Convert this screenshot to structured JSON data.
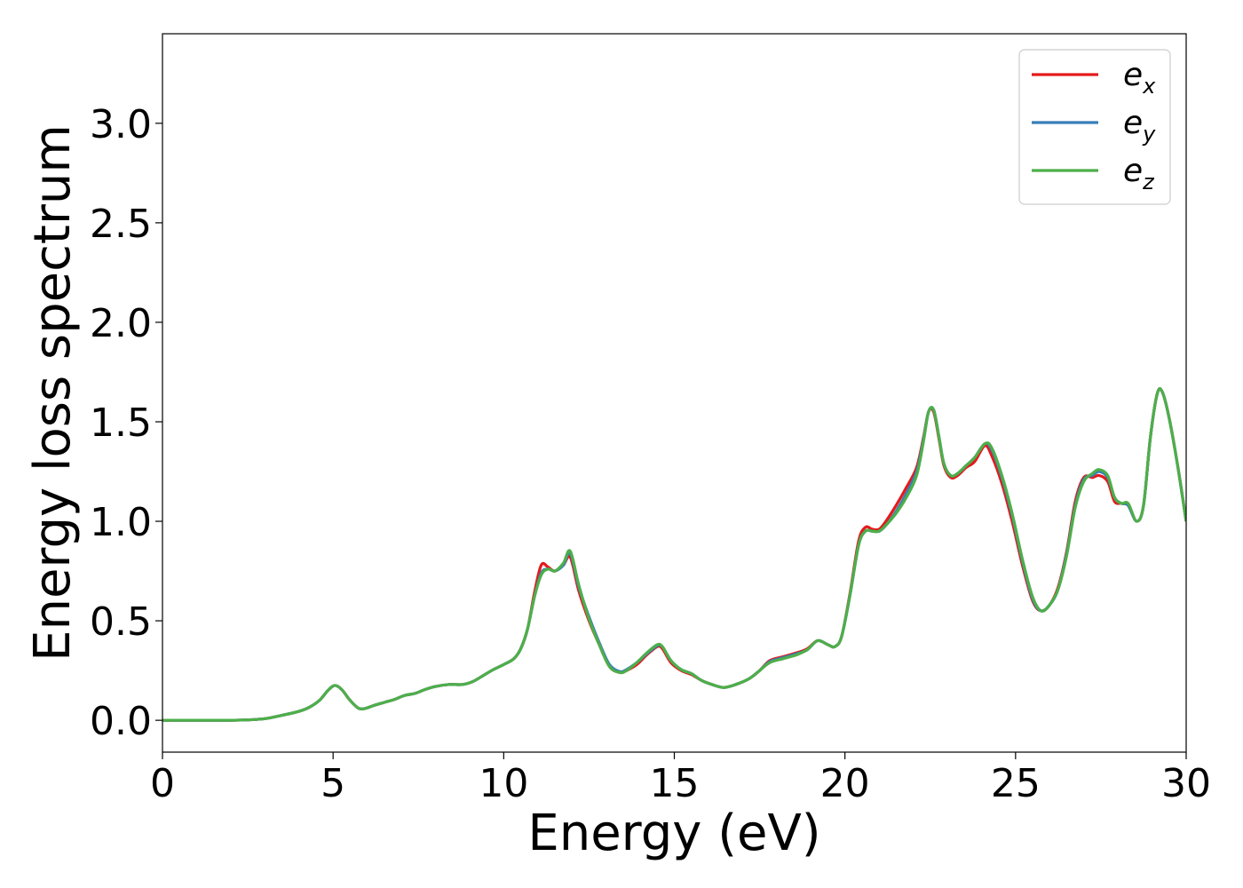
{
  "chart_data": {
    "type": "line",
    "xlabel": "Energy (eV)",
    "ylabel": "Energy loss spectrum",
    "xlim": [
      0,
      30
    ],
    "ylim": [
      -0.16,
      3.45
    ],
    "xticks": [
      0,
      5,
      10,
      15,
      20,
      25,
      30
    ],
    "yticks": [
      0.0,
      0.5,
      1.0,
      1.5,
      2.0,
      2.5,
      3.0
    ],
    "xtick_labels": [
      "0",
      "5",
      "10",
      "15",
      "20",
      "25",
      "30"
    ],
    "ytick_labels": [
      "0.0",
      "0.5",
      "1.0",
      "1.5",
      "2.0",
      "2.5",
      "3.0"
    ],
    "grid": false,
    "legend_position": "top-right",
    "x": [
      0,
      1,
      2,
      2.5,
      3,
      3.5,
      4,
      4.3,
      4.6,
      4.85,
      5.05,
      5.25,
      5.5,
      5.75,
      5.95,
      6.2,
      6.5,
      6.8,
      7.1,
      7.4,
      7.7,
      8.0,
      8.4,
      8.8,
      9.1,
      9.4,
      9.7,
      10.0,
      10.3,
      10.5,
      10.7,
      10.9,
      11.1,
      11.3,
      11.5,
      11.75,
      11.95,
      12.2,
      12.5,
      12.8,
      13.1,
      13.4,
      13.6,
      13.9,
      14.2,
      14.5,
      14.65,
      14.9,
      15.2,
      15.5,
      15.8,
      16.1,
      16.45,
      16.8,
      17.2,
      17.5,
      17.8,
      18.2,
      18.6,
      18.9,
      19.2,
      19.5,
      19.7,
      19.9,
      20.15,
      20.4,
      20.6,
      20.8,
      21.0,
      21.2,
      21.5,
      21.8,
      22.1,
      22.3,
      22.45,
      22.6,
      22.75,
      22.9,
      23.1,
      23.3,
      23.55,
      23.8,
      24.1,
      24.3,
      24.6,
      24.9,
      25.2,
      25.5,
      25.75,
      26.0,
      26.25,
      26.5,
      26.75,
      27.0,
      27.25,
      27.45,
      27.7,
      27.9,
      28.1,
      28.3,
      28.55,
      28.75,
      28.95,
      29.15,
      29.3,
      29.5,
      29.75,
      30.0
    ],
    "series": [
      {
        "name": "e_x",
        "color": "#e41a1c",
        "values": [
          0.0,
          0.0,
          0.0,
          0.002,
          0.008,
          0.025,
          0.045,
          0.065,
          0.1,
          0.15,
          0.175,
          0.155,
          0.1,
          0.06,
          0.06,
          0.075,
          0.09,
          0.105,
          0.125,
          0.135,
          0.155,
          0.17,
          0.18,
          0.18,
          0.195,
          0.225,
          0.255,
          0.28,
          0.31,
          0.36,
          0.46,
          0.64,
          0.78,
          0.77,
          0.75,
          0.78,
          0.82,
          0.65,
          0.5,
          0.38,
          0.27,
          0.24,
          0.25,
          0.28,
          0.33,
          0.37,
          0.36,
          0.29,
          0.25,
          0.23,
          0.2,
          0.18,
          0.165,
          0.18,
          0.21,
          0.25,
          0.3,
          0.32,
          0.34,
          0.36,
          0.4,
          0.38,
          0.37,
          0.42,
          0.64,
          0.9,
          0.97,
          0.96,
          0.96,
          1.0,
          1.08,
          1.17,
          1.27,
          1.42,
          1.55,
          1.55,
          1.42,
          1.28,
          1.22,
          1.23,
          1.27,
          1.3,
          1.38,
          1.33,
          1.19,
          1.0,
          0.78,
          0.6,
          0.55,
          0.58,
          0.67,
          0.85,
          1.1,
          1.22,
          1.22,
          1.23,
          1.2,
          1.1,
          1.09,
          1.08,
          1.0,
          1.08,
          1.42,
          1.64,
          1.65,
          1.52,
          1.28,
          1.0
        ]
      },
      {
        "name": "e_y",
        "color": "#377eb8",
        "values": [
          0.0,
          0.0,
          0.0,
          0.002,
          0.008,
          0.025,
          0.045,
          0.065,
          0.1,
          0.15,
          0.175,
          0.155,
          0.1,
          0.06,
          0.06,
          0.075,
          0.09,
          0.105,
          0.125,
          0.135,
          0.155,
          0.17,
          0.18,
          0.18,
          0.195,
          0.225,
          0.255,
          0.28,
          0.31,
          0.36,
          0.46,
          0.62,
          0.74,
          0.76,
          0.75,
          0.78,
          0.84,
          0.67,
          0.52,
          0.39,
          0.28,
          0.245,
          0.255,
          0.29,
          0.335,
          0.375,
          0.37,
          0.3,
          0.255,
          0.235,
          0.2,
          0.18,
          0.165,
          0.18,
          0.21,
          0.25,
          0.295,
          0.315,
          0.335,
          0.355,
          0.4,
          0.38,
          0.37,
          0.42,
          0.63,
          0.88,
          0.95,
          0.95,
          0.95,
          0.98,
          1.05,
          1.14,
          1.25,
          1.41,
          1.55,
          1.56,
          1.43,
          1.29,
          1.23,
          1.24,
          1.28,
          1.32,
          1.39,
          1.36,
          1.22,
          1.03,
          0.8,
          0.61,
          0.55,
          0.58,
          0.66,
          0.84,
          1.08,
          1.21,
          1.23,
          1.25,
          1.22,
          1.12,
          1.09,
          1.08,
          1.0,
          1.08,
          1.42,
          1.64,
          1.65,
          1.52,
          1.28,
          1.0
        ]
      },
      {
        "name": "e_z",
        "color": "#4daf4a",
        "values": [
          0.0,
          0.0,
          0.0,
          0.002,
          0.008,
          0.025,
          0.045,
          0.065,
          0.1,
          0.15,
          0.175,
          0.155,
          0.1,
          0.06,
          0.06,
          0.075,
          0.09,
          0.105,
          0.125,
          0.135,
          0.155,
          0.17,
          0.18,
          0.18,
          0.195,
          0.225,
          0.255,
          0.28,
          0.31,
          0.36,
          0.46,
          0.62,
          0.73,
          0.76,
          0.75,
          0.79,
          0.85,
          0.68,
          0.51,
          0.38,
          0.27,
          0.24,
          0.25,
          0.29,
          0.34,
          0.38,
          0.37,
          0.3,
          0.255,
          0.235,
          0.2,
          0.18,
          0.165,
          0.18,
          0.21,
          0.25,
          0.29,
          0.31,
          0.33,
          0.355,
          0.4,
          0.38,
          0.37,
          0.42,
          0.63,
          0.88,
          0.95,
          0.95,
          0.95,
          0.98,
          1.04,
          1.12,
          1.23,
          1.4,
          1.55,
          1.56,
          1.43,
          1.29,
          1.23,
          1.24,
          1.28,
          1.32,
          1.39,
          1.37,
          1.23,
          1.04,
          0.81,
          0.62,
          0.55,
          0.58,
          0.66,
          0.83,
          1.07,
          1.2,
          1.24,
          1.26,
          1.23,
          1.12,
          1.09,
          1.09,
          1.0,
          1.08,
          1.42,
          1.64,
          1.65,
          1.52,
          1.28,
          1.0
        ]
      }
    ]
  },
  "legend": {
    "entries": [
      {
        "base": "e",
        "sub": "x"
      },
      {
        "base": "e",
        "sub": "y"
      },
      {
        "base": "e",
        "sub": "z"
      }
    ]
  }
}
